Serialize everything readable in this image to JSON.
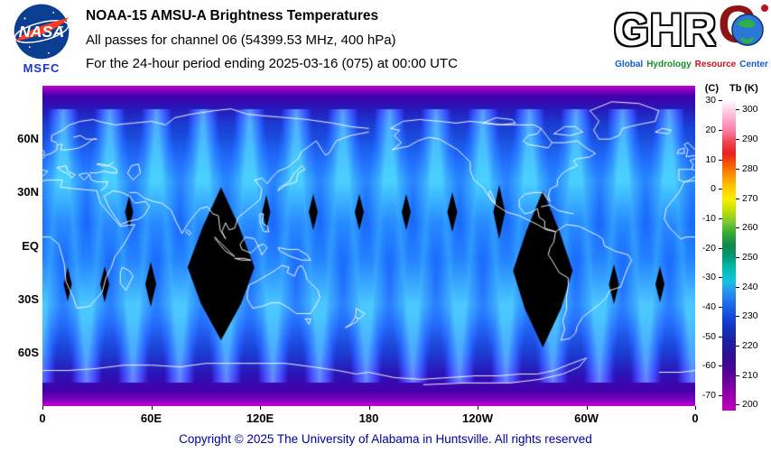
{
  "header": {
    "title": "NOAA-15 AMSU-A Brightness Temperatures",
    "subtitle": "All passes for channel 06 (54399.53 MHz, 400 hPa)",
    "period_line": "For the 24-hour period ending 2025-03-16 (075) at 00:00 UTC",
    "nasa_wordmark": "NASA",
    "msfc_label": "MSFC"
  },
  "ghrc": {
    "letters_ghr": "GHR",
    "letter_c": "C",
    "tagline": [
      {
        "text": "Global",
        "color": "#1559c8"
      },
      {
        "text": "Hydrology",
        "color": "#168a2c"
      },
      {
        "text": "Resource",
        "color": "#c41220"
      },
      {
        "text": "Center",
        "color": "#1559c8"
      }
    ]
  },
  "map": {
    "y_axis_labels": [
      {
        "label": "60N",
        "lat": 60
      },
      {
        "label": "30N",
        "lat": 30
      },
      {
        "label": "EQ",
        "lat": 0
      },
      {
        "label": "30S",
        "lat": -30
      },
      {
        "label": "60S",
        "lat": -60
      }
    ],
    "x_axis_labels": [
      "0",
      "60E",
      "120E",
      "180",
      "120W",
      "60W",
      "0"
    ]
  },
  "colorbar": {
    "left_unit": "(C)",
    "right_unit": "Tb (K)",
    "left_ticks_C": [
      30,
      20,
      10,
      0,
      -10,
      -20,
      -30,
      -40,
      -50,
      -60,
      -70
    ],
    "right_ticks_K": [
      300,
      290,
      280,
      270,
      260,
      250,
      240,
      230,
      220,
      210,
      200
    ],
    "scale_top_K": 303.5,
    "scale_bottom_K": 198
  },
  "footer": {
    "copyright": "Copyright © 2025 The University of Alabama in Huntsville.  All rights reserved"
  },
  "chart_data": {
    "type": "heatmap",
    "title": "NOAA-15 AMSU-A Brightness Temperatures",
    "subtitle": "All passes for channel 06 (54399.53 MHz, 400 hPa)",
    "period": "24-hour period ending 2025-03-16 (075) at 00:00 UTC",
    "projection": "equirectangular global map, longitude 0 eastward through 180 back to 0",
    "x_axis": {
      "ticks": [
        "0",
        "60E",
        "120E",
        "180",
        "120W",
        "60W",
        "0"
      ],
      "range_deg": [
        0,
        360
      ]
    },
    "y_axis": {
      "ticks": [
        "60N",
        "30N",
        "EQ",
        "30S",
        "60S"
      ],
      "range_deg": [
        -90,
        90
      ]
    },
    "colorbar": {
      "label_left": "(C)",
      "label_right": "Tb (K)",
      "ticks_K": [
        300,
        290,
        280,
        270,
        260,
        250,
        240,
        230,
        220,
        210,
        200
      ],
      "ticks_C": [
        30,
        20,
        10,
        0,
        -10,
        -20,
        -30,
        -40,
        -50,
        -60,
        -70
      ],
      "palette_top_to_bottom": [
        "#ffffff",
        "#ffc2dc",
        "#ff8fb4",
        "#e82222",
        "#ff6600",
        "#ff9900",
        "#ffd800",
        "#ffff00",
        "#a8d800",
        "#32aa32",
        "#0e7e3c",
        "#00a082",
        "#00c8c0",
        "#32b4ee",
        "#2078e8",
        "#1148d8",
        "#1130b4",
        "#251b9e",
        "#3c0b96",
        "#5e00a0",
        "#8c00ae",
        "#b400ba"
      ],
      "legend_position": "right"
    },
    "values_summary": {
      "typical_Tb_K_midlatitude_swath_maxima": 248,
      "typical_Tb_K_midlatitudes": 240,
      "typical_Tb_K_tropics": 233,
      "typical_Tb_K_polar_bands": 210,
      "coastlines_overlay": "white"
    },
    "data_gaps": [
      {
        "shape": "large black diamond (no coverage)",
        "center_lon": "98E",
        "lat_extent": "33N to 53S"
      },
      {
        "shape": "large black diamond (no coverage)",
        "center_lon": "84W",
        "lat_extent": "31N to 57S"
      },
      {
        "shape": "small inter-swath diamond gaps",
        "rows_lat": [
          "~19N",
          "~22S"
        ]
      }
    ],
    "grid": false
  }
}
